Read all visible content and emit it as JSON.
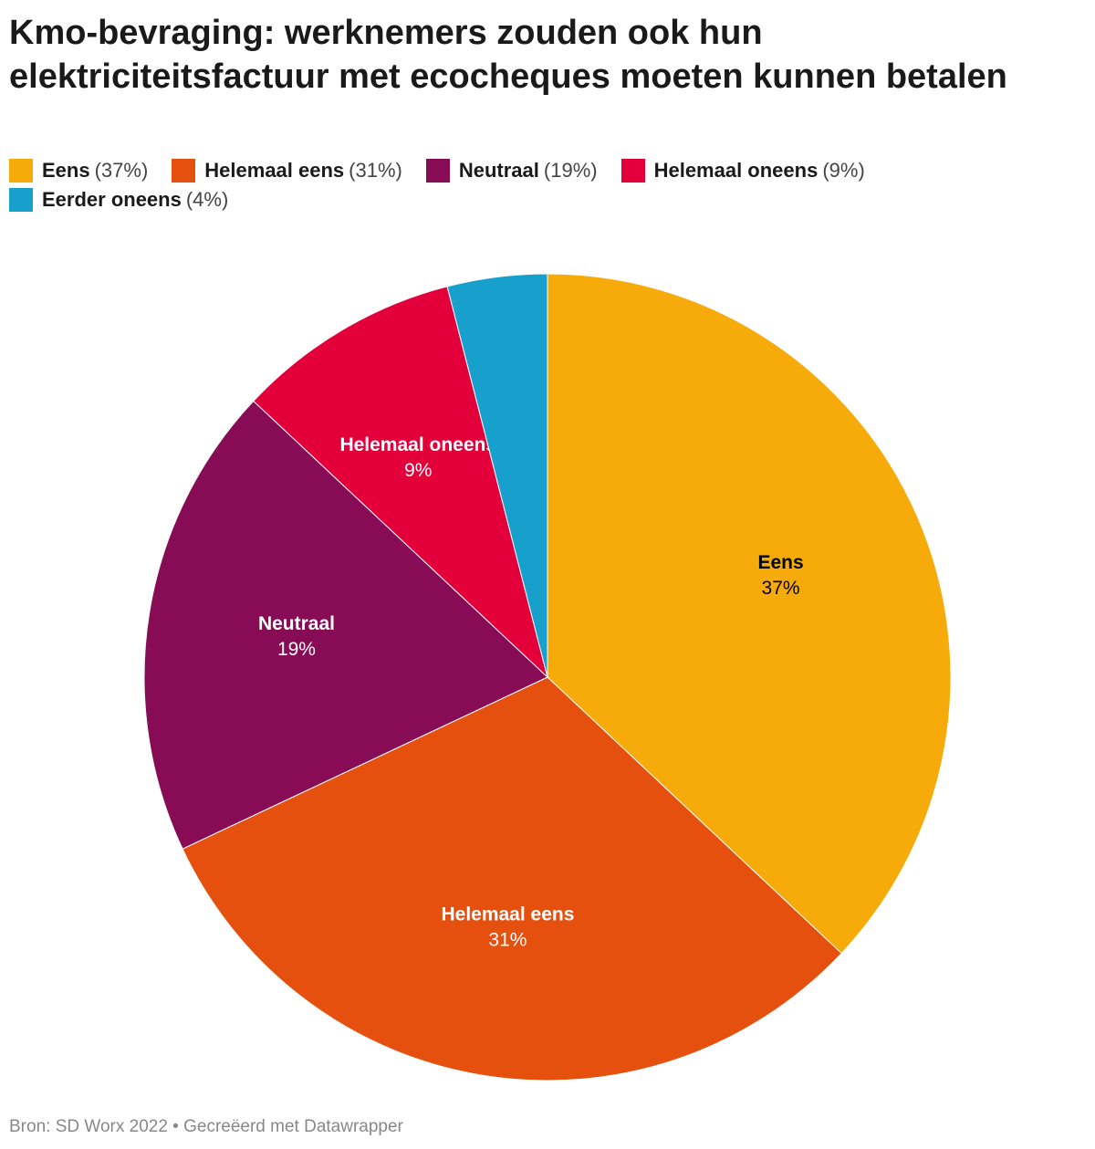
{
  "chart_data": {
    "type": "pie",
    "title": "Kmo-bevraging: werknemers zouden ook hun elektriciteitsfactuur met ecocheques moeten kunnen betalen",
    "categories": [
      "Eens",
      "Helemaal eens",
      "Neutraal",
      "Helemaal oneens",
      "Eerder oneens"
    ],
    "values": [
      37,
      31,
      19,
      9,
      4
    ],
    "value_labels": [
      "37%",
      "31%",
      "19%",
      "9%",
      null
    ],
    "legend_labels": [
      "(37%)",
      "(31%)",
      "(19%)",
      "(9%)",
      "(4%)"
    ],
    "colors": [
      "#f7ab0a",
      "#e6500f",
      "#870b55",
      "#e3003a",
      "#18a0cc"
    ],
    "label_colors": [
      "#000000",
      "#ffffff",
      "#ffffff",
      "#ffffff",
      "#ffffff"
    ],
    "source": "Bron: SD Worx 2022 • Gecreëerd met Datawrapper"
  }
}
